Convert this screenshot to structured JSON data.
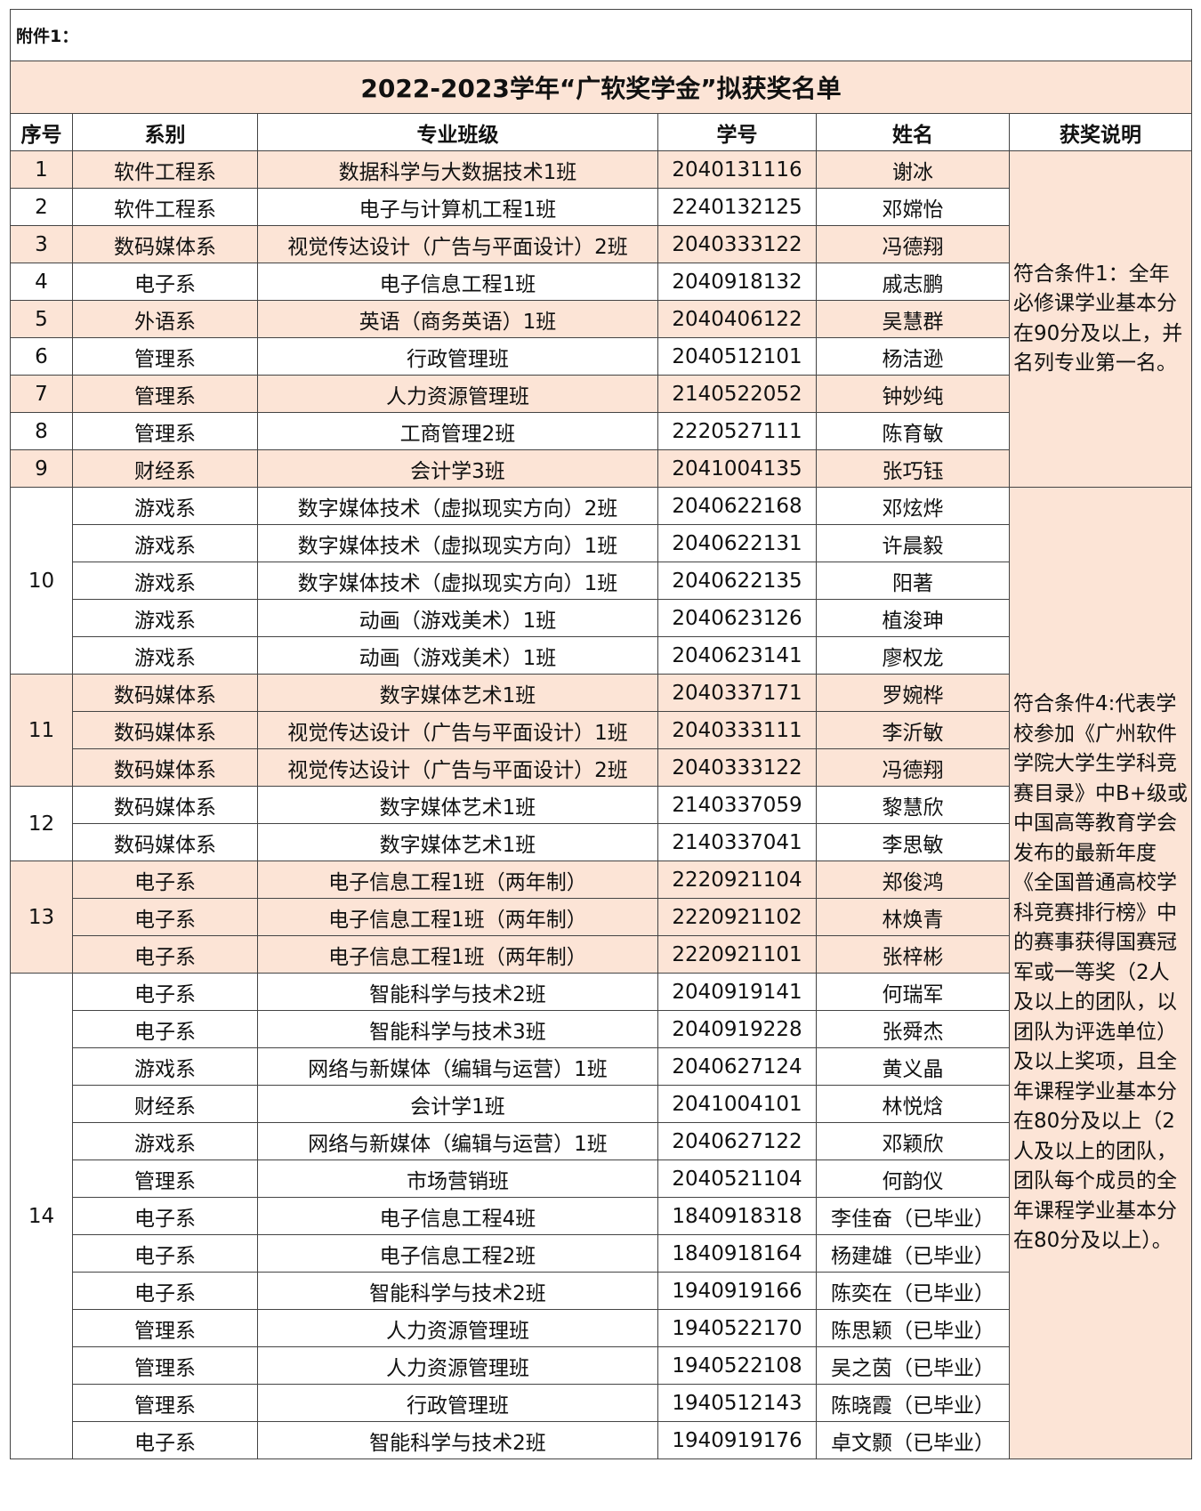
{
  "attachment_label": "附件1：",
  "title": "2022-2023学年“广软奖学金”拟获奖名单",
  "highlight_color": "#fce4d6",
  "columns": [
    "序号",
    "系别",
    "专业班级",
    "学号",
    "姓名",
    "获奖说明"
  ],
  "descriptions": [
    "符合条件1：全年必修课学业基本分在90分及以上，并名列专业第一名。",
    "符合条件4:代表学校参加《广州软件学院大学生学科竞赛目录》中B+级或中国高等教育学会发布的最新年度《全国普通高校学科竞赛排行榜》中的赛事获得国赛冠军或一等奖（2人及以上的团队，以团队为评选单位）及以上奖项，且全年课程学业基本分在80分及以上（2人及以上的团队，团队每个成员的全年课程学业基本分在80分及以上）。"
  ],
  "groups": [
    {
      "seq": "1",
      "highlight": true,
      "desc": 0,
      "rows": [
        [
          "软件工程系",
          "数据科学与大数据技术1班",
          "2040131116",
          "谢冰"
        ]
      ]
    },
    {
      "seq": "2",
      "highlight": false,
      "desc": 0,
      "rows": [
        [
          "软件工程系",
          "电子与计算机工程1班",
          "2240132125",
          "邓嫦怡"
        ]
      ]
    },
    {
      "seq": "3",
      "highlight": true,
      "desc": 0,
      "rows": [
        [
          "数码媒体系",
          "视觉传达设计（广告与平面设计）2班",
          "2040333122",
          "冯德翔"
        ]
      ]
    },
    {
      "seq": "4",
      "highlight": false,
      "desc": 0,
      "rows": [
        [
          "电子系",
          "电子信息工程1班",
          "2040918132",
          "戚志鹏"
        ]
      ]
    },
    {
      "seq": "5",
      "highlight": true,
      "desc": 0,
      "rows": [
        [
          "外语系",
          "英语（商务英语）1班",
          "2040406122",
          "吴慧群"
        ]
      ]
    },
    {
      "seq": "6",
      "highlight": false,
      "desc": 0,
      "rows": [
        [
          "管理系",
          "行政管理班",
          "2040512101",
          "杨洁逊"
        ]
      ]
    },
    {
      "seq": "7",
      "highlight": true,
      "desc": 0,
      "rows": [
        [
          "管理系",
          "人力资源管理班",
          "2140522052",
          "钟妙纯"
        ]
      ]
    },
    {
      "seq": "8",
      "highlight": false,
      "desc": 0,
      "rows": [
        [
          "管理系",
          "工商管理2班",
          "2220527111",
          "陈育敏"
        ]
      ]
    },
    {
      "seq": "9",
      "highlight": true,
      "desc": 0,
      "rows": [
        [
          "财经系",
          "会计学3班",
          "2041004135",
          "张巧钰"
        ]
      ]
    },
    {
      "seq": "10",
      "highlight": false,
      "desc": 1,
      "rows": [
        [
          "游戏系",
          "数字媒体技术（虚拟现实方向）2班",
          "2040622168",
          "邓炫烨"
        ],
        [
          "游戏系",
          "数字媒体技术（虚拟现实方向）1班",
          "2040622131",
          "许晨毅"
        ],
        [
          "游戏系",
          "数字媒体技术（虚拟现实方向）1班",
          "2040622135",
          "阳著"
        ],
        [
          "游戏系",
          "动画（游戏美术）1班",
          "2040623126",
          "植浚珅"
        ],
        [
          "游戏系",
          "动画（游戏美术）1班",
          "2040623141",
          "廖权龙"
        ]
      ]
    },
    {
      "seq": "11",
      "highlight": true,
      "desc": 1,
      "rows": [
        [
          "数码媒体系",
          "数字媒体艺术1班",
          "2040337171",
          "罗婉桦"
        ],
        [
          "数码媒体系",
          "视觉传达设计（广告与平面设计）1班",
          "2040333111",
          "李沂敏"
        ],
        [
          "数码媒体系",
          "视觉传达设计（广告与平面设计）2班",
          "2040333122",
          "冯德翔"
        ]
      ]
    },
    {
      "seq": "12",
      "highlight": false,
      "desc": 1,
      "rows": [
        [
          "数码媒体系",
          "数字媒体艺术1班",
          "2140337059",
          "黎慧欣"
        ],
        [
          "数码媒体系",
          "数字媒体艺术1班",
          "2140337041",
          "李思敏"
        ]
      ]
    },
    {
      "seq": "13",
      "highlight": true,
      "desc": 1,
      "rows": [
        [
          "电子系",
          "电子信息工程1班（两年制）",
          "2220921104",
          "郑俊鸿"
        ],
        [
          "电子系",
          "电子信息工程1班（两年制）",
          "2220921102",
          "林焕青"
        ],
        [
          "电子系",
          "电子信息工程1班（两年制）",
          "2220921101",
          "张梓彬"
        ]
      ]
    },
    {
      "seq": "14",
      "highlight": false,
      "desc": 1,
      "rows": [
        [
          "电子系",
          "智能科学与技术2班",
          "2040919141",
          "何瑞军"
        ],
        [
          "电子系",
          "智能科学与技术3班",
          "2040919228",
          "张舜杰"
        ],
        [
          "游戏系",
          "网络与新媒体（编辑与运营）1班",
          "2040627124",
          "黄义晶"
        ],
        [
          "财经系",
          "会计学1班",
          "2041004101",
          "林悦焓"
        ],
        [
          "游戏系",
          "网络与新媒体（编辑与运营）1班",
          "2040627122",
          "邓颖欣"
        ],
        [
          "管理系",
          "市场营销班",
          "2040521104",
          "何韵仪"
        ],
        [
          "电子系",
          "电子信息工程4班",
          "1840918318",
          "李佳奋（已毕业）"
        ],
        [
          "电子系",
          "电子信息工程2班",
          "1840918164",
          "杨建雄（已毕业）"
        ],
        [
          "电子系",
          "智能科学与技术2班",
          "1940919166",
          "陈奕在（已毕业）"
        ],
        [
          "管理系",
          "人力资源管理班",
          "1940522170",
          "陈思颖（已毕业）"
        ],
        [
          "管理系",
          "人力资源管理班",
          "1940522108",
          "吴之茵（已毕业）"
        ],
        [
          "管理系",
          "行政管理班",
          "1940512143",
          "陈晓霞（已毕业）"
        ],
        [
          "电子系",
          "智能科学与技术2班",
          "1940919176",
          "卓文颢（已毕业）"
        ]
      ]
    }
  ]
}
